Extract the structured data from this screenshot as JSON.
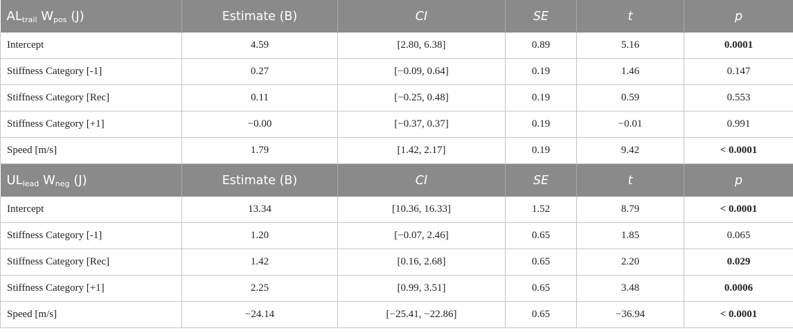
{
  "tables": [
    {
      "title": {
        "var": "AL",
        "var_sub": "trail",
        "w": "W",
        "w_sub": "pos",
        "unit": "(J)"
      },
      "headers": [
        "Estimate (B)",
        "CI",
        "SE",
        "t",
        "p"
      ],
      "rows": [
        {
          "label": "Intercept",
          "estimate": "4.59",
          "ci": "[2.80, 6.38]",
          "se": "0.89",
          "t": "5.16",
          "p": "0.0001",
          "p_bold": true
        },
        {
          "label": "Stiffness Category [-1]",
          "estimate": "0.27",
          "ci": "[−0.09, 0.64]",
          "se": "0.19",
          "t": "1.46",
          "p": "0.147",
          "p_bold": false
        },
        {
          "label": "Stiffness Category [Rec]",
          "estimate": "0.11",
          "ci": "[−0.25, 0.48]",
          "se": "0.19",
          "t": "0.59",
          "p": "0.553",
          "p_bold": false
        },
        {
          "label": "Stiffness Category [+1]",
          "estimate": "−0.00",
          "ci": "[−0.37, 0.37]",
          "se": "0.19",
          "t": "−0.01",
          "p": "0.991",
          "p_bold": false
        },
        {
          "label": "Speed [m/s]",
          "estimate": "1.79",
          "ci": "[1.42, 2.17]",
          "se": "0.19",
          "t": "9.42",
          "p": "< 0.0001",
          "p_bold": true
        }
      ]
    },
    {
      "title": {
        "var": "UL",
        "var_sub": "lead",
        "w": "W",
        "w_sub": "neg",
        "unit": "(J)"
      },
      "headers": [
        "Estimate (B)",
        "CI",
        "SE",
        "t",
        "p"
      ],
      "rows": [
        {
          "label": "Intercept",
          "estimate": "13.34",
          "ci": "[10.36, 16.33]",
          "se": "1.52",
          "t": "8.79",
          "p": "< 0.0001",
          "p_bold": true
        },
        {
          "label": "Stiffness Category [-1]",
          "estimate": "1.20",
          "ci": "[−0.07, 2.46]",
          "se": "0.65",
          "t": "1.85",
          "p": "0.065",
          "p_bold": false
        },
        {
          "label": "Stiffness Category [Rec]",
          "estimate": "1.42",
          "ci": "[0.16, 2.68]",
          "se": "0.65",
          "t": "2.20",
          "p": "0.029",
          "p_bold": true
        },
        {
          "label": "Stiffness Category [+1]",
          "estimate": "2.25",
          "ci": "[0.99, 3.51]",
          "se": "0.65",
          "t": "3.48",
          "p": "0.0006",
          "p_bold": true
        },
        {
          "label": "Speed [m/s]",
          "estimate": "−24.14",
          "ci": "[−25.41, −22.86]",
          "se": "0.65",
          "t": "−36.94",
          "p": "< 0.0001",
          "p_bold": true
        }
      ]
    }
  ],
  "colors": {
    "header_bg": "#8a8a8a",
    "header_text": "#ffffff",
    "border": "#c4c4c4"
  }
}
